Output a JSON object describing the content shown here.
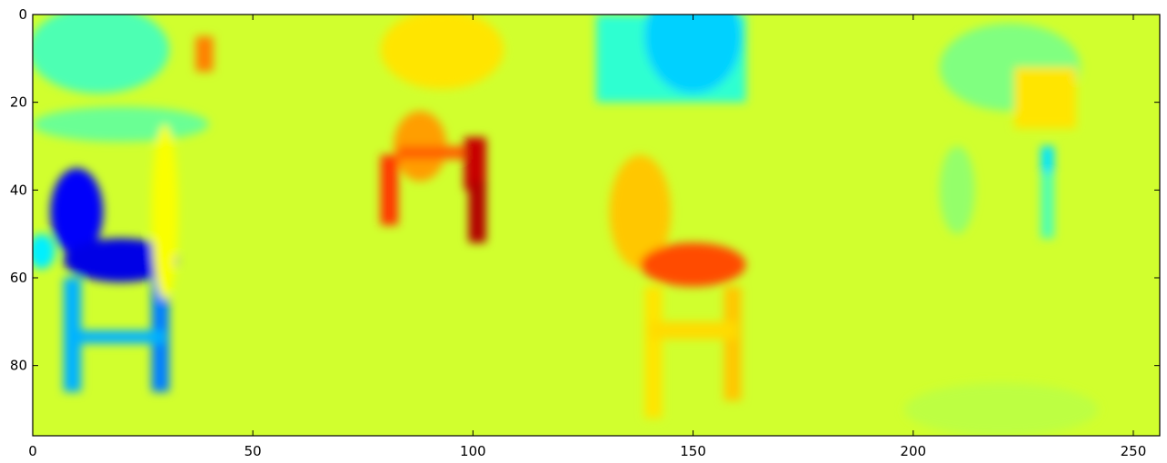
{
  "chart_data": {
    "type": "heatmap",
    "title": "",
    "xlabel": "",
    "ylabel": "",
    "xlim": [
      0,
      256
    ],
    "ylim": [
      96,
      0
    ],
    "x_ticks": [
      0,
      50,
      100,
      150,
      200,
      250
    ],
    "y_ticks": [
      0,
      20,
      40,
      60,
      80
    ],
    "grid": false,
    "colormap": "jet",
    "panels": [
      {
        "x_range": [
          0,
          64
        ],
        "description": "chair (low values)"
      },
      {
        "x_range": [
          64,
          128
        ],
        "description": "table (high values)"
      },
      {
        "x_range": [
          128,
          192
        ],
        "description": "chair (high values)"
      },
      {
        "x_range": [
          192,
          256
        ],
        "description": "table (low values)"
      }
    ],
    "background_value": 0.58,
    "blobs": [
      {
        "shape": "ellipse",
        "cx": 20,
        "cy": 25,
        "rx": 20,
        "ry": 4,
        "value": 0.48
      },
      {
        "shape": "ellipse",
        "cx": 15,
        "cy": 8,
        "rx": 16,
        "ry": 10,
        "value": 0.45
      },
      {
        "shape": "ellipse",
        "cx": 2,
        "cy": 54,
        "rx": 3,
        "ry": 4,
        "value": 0.36
      },
      {
        "shape": "ellipse",
        "cx": 10,
        "cy": 45,
        "rx": 6,
        "ry": 10,
        "value": 0.12
      },
      {
        "shape": "ellipse",
        "cx": 20,
        "cy": 56,
        "rx": 13,
        "ry": 5,
        "value": 0.1
      },
      {
        "shape": "rect",
        "x0": 7,
        "x1": 11,
        "y0": 60,
        "y1": 86,
        "value": 0.3
      },
      {
        "shape": "rect",
        "x0": 27,
        "x1": 31,
        "y0": 60,
        "y1": 86,
        "value": 0.25
      },
      {
        "shape": "rect",
        "x0": 8,
        "x1": 30,
        "y0": 72,
        "y1": 75,
        "value": 0.3
      },
      {
        "shape": "rect",
        "x0": 37,
        "x1": 41,
        "y0": 5,
        "y1": 13,
        "value": 0.75
      },
      {
        "shape": "ellipse",
        "cx": 30,
        "cy": 45,
        "rx": 3,
        "ry": 20,
        "value": 0.62
      },
      {
        "shape": "ellipse",
        "cx": 93,
        "cy": 8,
        "rx": 14,
        "ry": 9,
        "value": 0.65
      },
      {
        "shape": "ellipse",
        "cx": 88,
        "cy": 30,
        "rx": 6,
        "ry": 8,
        "value": 0.72
      },
      {
        "shape": "rect",
        "x0": 79,
        "x1": 83,
        "y0": 32,
        "y1": 48,
        "value": 0.82
      },
      {
        "shape": "rect",
        "x0": 98,
        "x1": 103,
        "y0": 28,
        "y1": 40,
        "value": 0.93
      },
      {
        "shape": "rect",
        "x0": 99,
        "x1": 103,
        "y0": 38,
        "y1": 52,
        "value": 0.95
      },
      {
        "shape": "rect",
        "x0": 83,
        "x1": 98,
        "y0": 30,
        "y1": 33,
        "value": 0.78
      },
      {
        "shape": "rect",
        "x0": 128,
        "x1": 162,
        "y0": 0,
        "y1": 20,
        "value": 0.42
      },
      {
        "shape": "ellipse",
        "cx": 150,
        "cy": 5,
        "rx": 11,
        "ry": 13,
        "value": 0.33
      },
      {
        "shape": "ellipse",
        "cx": 138,
        "cy": 45,
        "rx": 7,
        "ry": 13,
        "value": 0.68
      },
      {
        "shape": "ellipse",
        "cx": 150,
        "cy": 57,
        "rx": 12,
        "ry": 5,
        "value": 0.8
      },
      {
        "shape": "rect",
        "x0": 139,
        "x1": 143,
        "y0": 62,
        "y1": 92,
        "value": 0.65
      },
      {
        "shape": "rect",
        "x0": 157,
        "x1": 161,
        "y0": 62,
        "y1": 88,
        "value": 0.68
      },
      {
        "shape": "rect",
        "x0": 140,
        "x1": 160,
        "y0": 70,
        "y1": 74,
        "value": 0.66
      },
      {
        "shape": "ellipse",
        "cx": 222,
        "cy": 12,
        "rx": 16,
        "ry": 10,
        "value": 0.5
      },
      {
        "shape": "rect",
        "x0": 223,
        "x1": 237,
        "y0": 12,
        "y1": 26,
        "value": 0.65
      },
      {
        "shape": "rect",
        "x0": 229,
        "x1": 232,
        "y0": 30,
        "y1": 36,
        "value": 0.35
      },
      {
        "shape": "rect",
        "x0": 229,
        "x1": 232,
        "y0": 36,
        "y1": 51,
        "value": 0.45
      },
      {
        "shape": "ellipse",
        "cx": 210,
        "cy": 40,
        "rx": 4,
        "ry": 10,
        "value": 0.52
      },
      {
        "shape": "ellipse",
        "cx": 220,
        "cy": 90,
        "rx": 22,
        "ry": 6,
        "value": 0.56
      }
    ]
  }
}
